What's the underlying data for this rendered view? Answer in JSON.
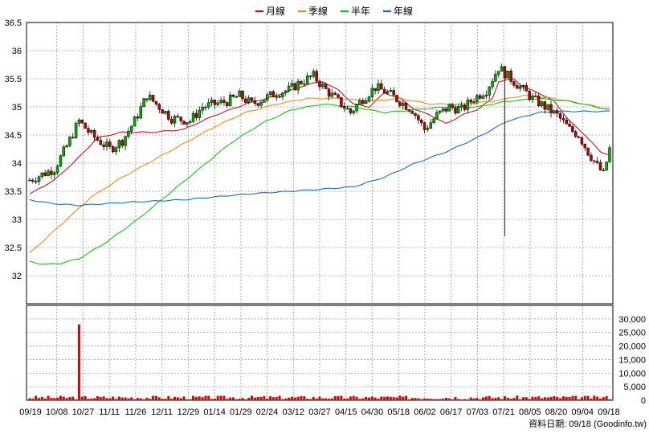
{
  "chart_data": {
    "type": "candlestick",
    "legend": [
      {
        "name": "月線",
        "color": "#d00000"
      },
      {
        "name": "季線",
        "color": "#ff7f00"
      },
      {
        "name": "半年",
        "color": "#00c000"
      },
      {
        "name": "年線",
        "color": "#0060d0"
      }
    ],
    "price_axis": {
      "ylim": [
        31.5,
        36.5
      ],
      "ticks": [
        "36.5",
        "36",
        "35.5",
        "35",
        "34.5",
        "34",
        "33.5",
        "33",
        "32.5",
        "32"
      ]
    },
    "volume_axis": {
      "ylim": [
        0,
        35000
      ],
      "ticks": [
        "30,000",
        "25,000",
        "20,000",
        "15,000",
        "10,000",
        "5,000",
        "0"
      ]
    },
    "x_ticks": [
      "09/19",
      "10/08",
      "10/27",
      "11/11",
      "11/26",
      "12/11",
      "12/29",
      "01/14",
      "01/29",
      "02/24",
      "03/12",
      "03/27",
      "04/15",
      "04/30",
      "05/18",
      "06/02",
      "06/17",
      "07/03",
      "07/21",
      "08/05",
      "08/20",
      "09/04",
      "09/18"
    ],
    "footer": "資料日期: 09/18 (Goodinfo.tw)",
    "ma_series": {
      "月線": [
        [
          0,
          33.45
        ],
        [
          8,
          33.7
        ],
        [
          15,
          34.05
        ],
        [
          22,
          34.45
        ],
        [
          30,
          34.55
        ],
        [
          40,
          34.55
        ],
        [
          50,
          34.6
        ],
        [
          60,
          34.85
        ],
        [
          70,
          35.05
        ],
        [
          80,
          35.2
        ],
        [
          90,
          35.4
        ],
        [
          95,
          35.45
        ],
        [
          100,
          35.3
        ],
        [
          105,
          35.05
        ],
        [
          110,
          35.0
        ],
        [
          115,
          35.25
        ],
        [
          120,
          35.15
        ],
        [
          125,
          34.95
        ],
        [
          130,
          34.85
        ],
        [
          135,
          34.7
        ],
        [
          140,
          34.85
        ],
        [
          145,
          34.95
        ],
        [
          150,
          35.15
        ],
        [
          152,
          35.45
        ],
        [
          157,
          35.5
        ],
        [
          160,
          35.35
        ],
        [
          165,
          35.25
        ],
        [
          170,
          35.1
        ],
        [
          175,
          34.75
        ],
        [
          180,
          34.5
        ],
        [
          185,
          34.2
        ],
        [
          188,
          34.15
        ]
      ],
      "季線": [
        [
          0,
          32.4
        ],
        [
          10,
          32.9
        ],
        [
          20,
          33.4
        ],
        [
          30,
          33.75
        ],
        [
          40,
          34.05
        ],
        [
          50,
          34.35
        ],
        [
          60,
          34.65
        ],
        [
          70,
          34.9
        ],
        [
          80,
          35.05
        ],
        [
          90,
          35.15
        ],
        [
          100,
          35.15
        ],
        [
          110,
          35.1
        ],
        [
          120,
          35.15
        ],
        [
          130,
          35.05
        ],
        [
          140,
          35.05
        ],
        [
          150,
          35.1
        ],
        [
          160,
          35.2
        ],
        [
          170,
          35.15
        ],
        [
          180,
          35.05
        ],
        [
          188,
          34.95
        ]
      ],
      "半年": [
        [
          0,
          32.25
        ],
        [
          5,
          32.2
        ],
        [
          10,
          32.22
        ],
        [
          16,
          32.3
        ],
        [
          25,
          32.6
        ],
        [
          35,
          33.0
        ],
        [
          45,
          33.45
        ],
        [
          55,
          33.9
        ],
        [
          65,
          34.35
        ],
        [
          75,
          34.7
        ],
        [
          85,
          34.95
        ],
        [
          95,
          35.05
        ],
        [
          105,
          35.0
        ],
        [
          115,
          34.9
        ],
        [
          125,
          34.95
        ],
        [
          135,
          35.0
        ],
        [
          145,
          35.0
        ],
        [
          155,
          35.1
        ],
        [
          165,
          35.15
        ],
        [
          175,
          35.1
        ],
        [
          188,
          34.95
        ]
      ],
      "年線": [
        [
          0,
          33.35
        ],
        [
          5,
          33.3
        ],
        [
          10,
          33.27
        ],
        [
          16,
          33.25
        ],
        [
          30,
          33.3
        ],
        [
          50,
          33.35
        ],
        [
          70,
          33.45
        ],
        [
          90,
          33.52
        ],
        [
          105,
          33.58
        ],
        [
          115,
          33.75
        ],
        [
          125,
          34.0
        ],
        [
          135,
          34.2
        ],
        [
          145,
          34.45
        ],
        [
          155,
          34.75
        ],
        [
          165,
          34.9
        ],
        [
          172,
          34.92
        ],
        [
          188,
          34.92
        ]
      ]
    },
    "candle_anchors": [
      [
        0,
        33.7
      ],
      [
        8,
        33.9
      ],
      [
        12,
        34.3
      ],
      [
        16,
        34.75
      ],
      [
        20,
        34.5
      ],
      [
        26,
        34.25
      ],
      [
        30,
        34.4
      ],
      [
        34,
        34.75
      ],
      [
        38,
        35.2
      ],
      [
        42,
        35.0
      ],
      [
        46,
        34.8
      ],
      [
        52,
        34.75
      ],
      [
        56,
        35.0
      ],
      [
        60,
        35.05
      ],
      [
        64,
        35.1
      ],
      [
        68,
        35.2
      ],
      [
        72,
        35.05
      ],
      [
        76,
        35.15
      ],
      [
        80,
        35.25
      ],
      [
        84,
        35.3
      ],
      [
        88,
        35.45
      ],
      [
        92,
        35.55
      ],
      [
        96,
        35.3
      ],
      [
        100,
        35.1
      ],
      [
        104,
        34.9
      ],
      [
        108,
        35.15
      ],
      [
        112,
        35.35
      ],
      [
        116,
        35.25
      ],
      [
        120,
        35.1
      ],
      [
        124,
        34.95
      ],
      [
        128,
        34.6
      ],
      [
        132,
        34.85
      ],
      [
        136,
        35.0
      ],
      [
        140,
        34.95
      ],
      [
        144,
        35.15
      ],
      [
        148,
        35.3
      ],
      [
        152,
        35.7
      ],
      [
        156,
        35.5
      ],
      [
        160,
        35.3
      ],
      [
        163,
        35.15
      ],
      [
        167,
        35.0
      ],
      [
        171,
        34.85
      ],
      [
        175,
        34.6
      ],
      [
        178,
        34.5
      ],
      [
        181,
        34.2
      ],
      [
        184,
        33.95
      ],
      [
        186,
        33.8
      ],
      [
        188,
        34.25
      ]
    ],
    "volume_spike": {
      "index": 16,
      "value": 28000
    }
  }
}
